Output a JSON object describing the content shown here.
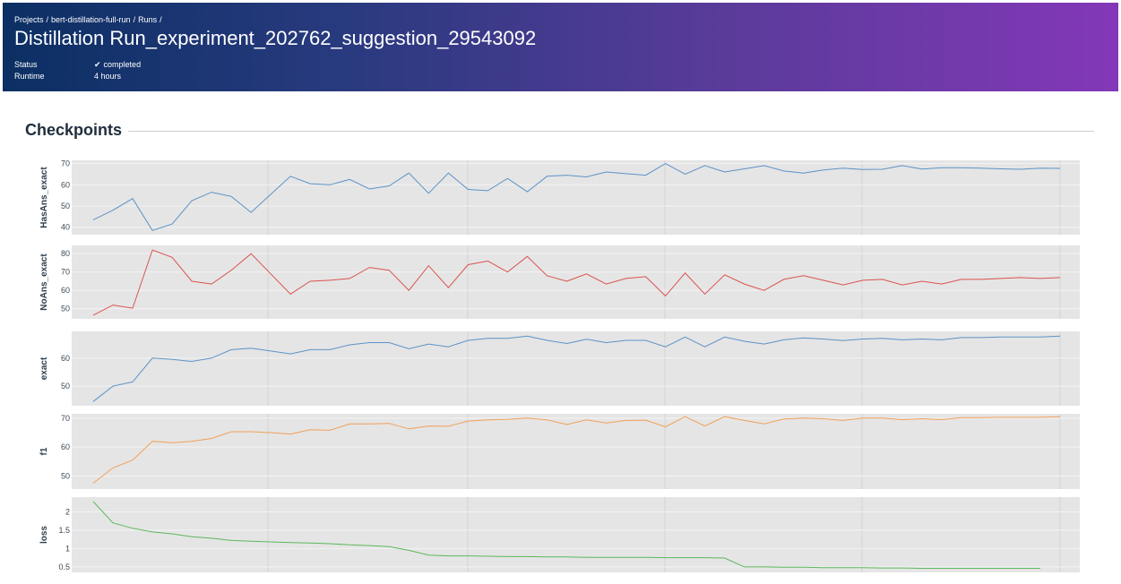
{
  "breadcrumb": {
    "items": [
      "Projects",
      "bert-distillation-full-run",
      "Runs"
    ],
    "separator": "/"
  },
  "title": "Distillation Run_experiment_202762_suggestion_29543092",
  "meta": {
    "status_label": "Status",
    "status_value": "completed",
    "runtime_label": "Runtime",
    "runtime_value": "4 hours"
  },
  "section": {
    "title": "Checkpoints"
  },
  "colors": {
    "blue": "#5b93c7",
    "red": "#d9534f",
    "orange": "#f0a05a",
    "green": "#5cb85c",
    "plot_bg": "#e5e5e5"
  },
  "chart_data": [
    {
      "type": "line",
      "ylabel": "HasAns_exact",
      "color": "#5b93c7",
      "yticks": [
        40,
        50,
        60,
        70
      ],
      "ylim": [
        36.5,
        71.5
      ],
      "values": [
        43.5,
        48,
        53.5,
        38.5,
        41.5,
        52.5,
        56.5,
        54.5,
        47,
        55.5,
        64,
        60.5,
        60,
        62.5,
        58,
        59.5,
        65.5,
        56,
        65.5,
        57.8,
        57.2,
        63,
        56.7,
        64,
        64.5,
        63.7,
        66,
        65.2,
        64.5,
        70,
        65,
        69,
        66,
        67.5,
        69,
        66.5,
        65.5,
        67,
        67.8,
        67.2,
        67.3,
        69,
        67.4,
        68,
        68,
        67.8,
        67.5,
        67.3,
        67.8,
        67.7
      ]
    },
    {
      "type": "line",
      "ylabel": "NoAns_exact",
      "color": "#d9534f",
      "yticks": [
        50,
        60,
        70,
        80
      ],
      "ylim": [
        44.5,
        84.5
      ],
      "values": [
        46.5,
        52,
        50.3,
        82,
        78,
        65,
        63.5,
        71,
        80,
        69,
        58,
        65,
        65.5,
        66.5,
        72.5,
        71,
        60,
        73.5,
        61.5,
        74,
        76,
        70,
        78.5,
        68,
        65,
        69,
        63.5,
        66.5,
        67.5,
        57,
        69.5,
        58,
        68.5,
        63.5,
        60,
        66,
        68,
        65.5,
        63,
        65.5,
        66,
        63,
        65,
        63.5,
        66,
        66,
        66.5,
        67,
        66.5,
        67
      ]
    },
    {
      "type": "line",
      "ylabel": "exact",
      "color": "#5b93c7",
      "yticks": [
        50,
        60
      ],
      "ylim": [
        43,
        69.5
      ],
      "values": [
        44.5,
        50,
        51.5,
        60,
        59.5,
        58.8,
        60,
        63,
        63.5,
        62.5,
        61.5,
        63,
        63,
        64.7,
        65.5,
        65.5,
        63.3,
        65,
        64,
        66.3,
        67,
        67,
        67.8,
        66.3,
        65.2,
        66.7,
        65.5,
        66.3,
        66.3,
        64,
        67.5,
        64,
        67.5,
        66,
        65,
        66.5,
        67.2,
        66.8,
        66.2,
        66.8,
        67,
        66.5,
        66.8,
        66.5,
        67.3,
        67.3,
        67.5,
        67.5,
        67.5,
        67.8
      ]
    },
    {
      "type": "line",
      "ylabel": "f1",
      "color": "#f0a05a",
      "yticks": [
        50,
        60,
        70
      ],
      "ylim": [
        45.5,
        71.5
      ],
      "values": [
        47.5,
        52.8,
        55.5,
        62,
        61.5,
        62,
        63,
        65.3,
        65.3,
        65,
        64.5,
        66,
        65.8,
        68,
        68,
        68.2,
        66.3,
        67.3,
        67.2,
        69,
        69.4,
        69.6,
        70,
        69.4,
        67.8,
        69.4,
        68.3,
        69.2,
        69.3,
        67,
        70.5,
        67.3,
        70.5,
        69.2,
        68,
        69.7,
        70,
        69.8,
        69.2,
        70,
        70,
        69.5,
        69.8,
        69.5,
        70.2,
        70.2,
        70.3,
        70.3,
        70.3,
        70.5
      ]
    },
    {
      "type": "line",
      "ylabel": "loss",
      "color": "#5cb85c",
      "yticks": [
        0.5,
        1,
        1.5,
        2
      ],
      "yticklabels": [
        "0.5",
        "1",
        "1.5",
        "2"
      ],
      "ylim": [
        0.35,
        2.4
      ],
      "values": [
        2.28,
        1.7,
        1.55,
        1.45,
        1.4,
        1.32,
        1.28,
        1.22,
        1.2,
        1.18,
        1.16,
        1.15,
        1.13,
        1.1,
        1.08,
        1.05,
        0.95,
        0.82,
        0.8,
        0.8,
        0.79,
        0.78,
        0.78,
        0.77,
        0.77,
        0.76,
        0.76,
        0.76,
        0.76,
        0.75,
        0.75,
        0.75,
        0.74,
        0.5,
        0.5,
        0.49,
        0.49,
        0.48,
        0.48,
        0.48,
        0.47,
        0.47,
        0.46,
        0.46,
        0.46,
        0.46,
        0.46,
        0.46,
        0.46
      ]
    }
  ]
}
